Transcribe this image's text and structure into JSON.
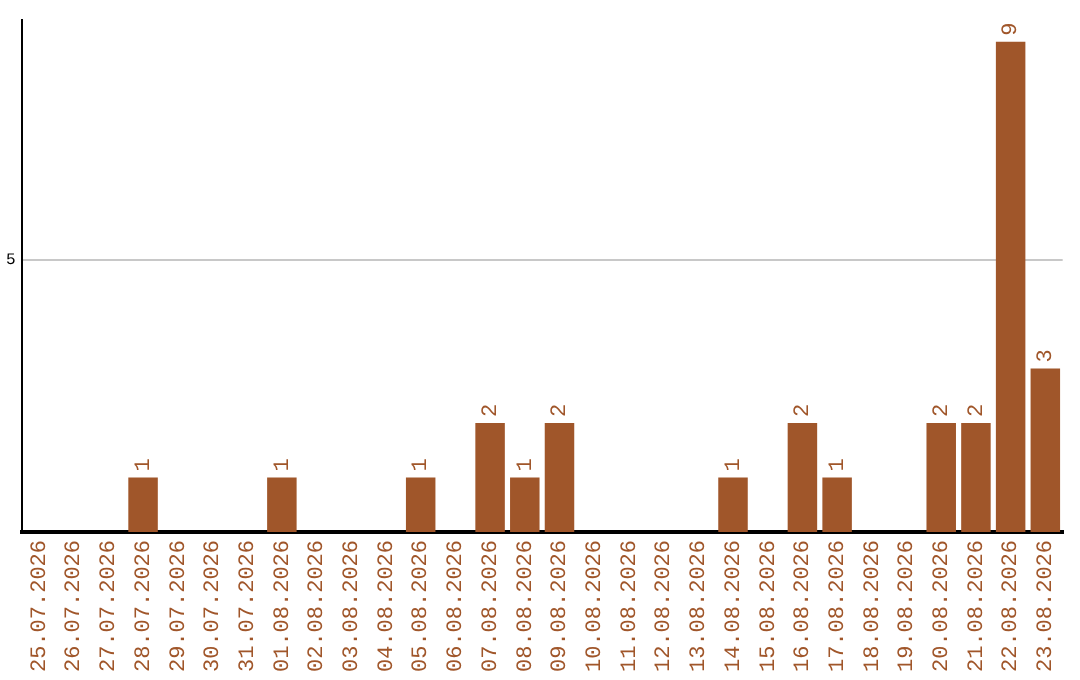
{
  "chart_data": {
    "type": "bar",
    "categories": [
      "25.07.2026",
      "26.07.2026",
      "27.07.2026",
      "28.07.2026",
      "29.07.2026",
      "30.07.2026",
      "31.07.2026",
      "01.08.2026",
      "02.08.2026",
      "03.08.2026",
      "04.08.2026",
      "05.08.2026",
      "06.08.2026",
      "07.08.2026",
      "08.08.2026",
      "09.08.2026",
      "10.08.2026",
      "11.08.2026",
      "12.08.2026",
      "13.08.2026",
      "14.08.2026",
      "15.08.2026",
      "16.08.2026",
      "17.08.2026",
      "18.08.2026",
      "19.08.2026",
      "20.08.2026",
      "21.08.2026",
      "22.08.2026",
      "23.08.2026"
    ],
    "values": [
      0,
      0,
      0,
      1,
      0,
      0,
      0,
      1,
      0,
      0,
      0,
      1,
      0,
      2,
      1,
      2,
      0,
      0,
      0,
      0,
      1,
      0,
      2,
      1,
      0,
      0,
      2,
      2,
      9,
      3
    ],
    "value_labels": [
      null,
      null,
      null,
      "1",
      null,
      null,
      null,
      "1",
      null,
      null,
      null,
      "1",
      null,
      "2",
      "1",
      "2",
      null,
      null,
      null,
      null,
      "1",
      null,
      "2",
      "1",
      null,
      null,
      "2",
      "2",
      "9",
      "3"
    ],
    "color": "#a0562a",
    "ylim": [
      0,
      9.4
    ],
    "yticks": [
      5
    ],
    "grid": "y",
    "legend": false
  }
}
